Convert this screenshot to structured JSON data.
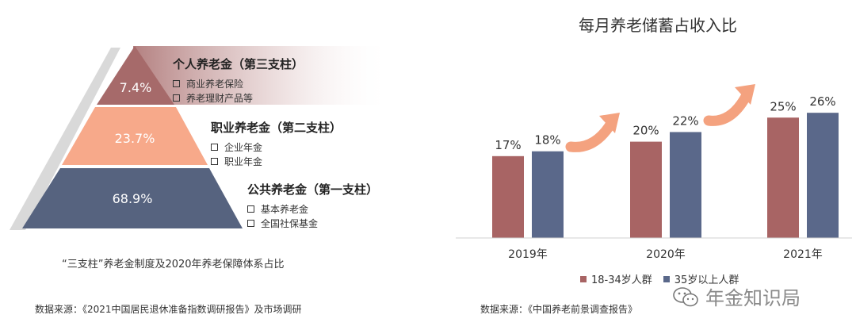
{
  "left_panel": {
    "tiers": [
      {
        "title": "个人养老金（第三支柱）",
        "percent": "7.4%",
        "items": [
          "商业养老保险",
          "养老理财产品等"
        ],
        "color": "#a66a6a"
      },
      {
        "title": "职业养老金（第二支柱）",
        "percent": "23.7%",
        "items": [
          "企业年金",
          "职业年金"
        ],
        "color": "#f7a98a"
      },
      {
        "title": "公共养老金（第一支柱）",
        "percent": "68.9%",
        "items": [
          "基本养老金",
          "全国社保基金"
        ],
        "color": "#56637f"
      }
    ],
    "caption": "“三支柱”养老金制度及2020年养老保障体系占比",
    "source": "数据来源：《2021中国居民退休准备指数调研报告》及市场调研"
  },
  "chart_data": {
    "type": "bar",
    "title": "每月养老储蓄占收入比",
    "categories": [
      "2019年",
      "2020年",
      "2021年"
    ],
    "series": [
      {
        "name": "18-34岁人群",
        "values": [
          17,
          20,
          25
        ],
        "labels": [
          "17%",
          "20%",
          "25%"
        ],
        "color": "#a86464"
      },
      {
        "name": "35岁以上人群",
        "values": [
          18,
          22,
          26
        ],
        "labels": [
          "18%",
          "22%",
          "26%"
        ],
        "color": "#5a688a"
      }
    ],
    "legend_position": "bottom",
    "grid": false
  },
  "right_panel": {
    "source": "数据来源：《中国养老前景调查报告》",
    "arrow_color": "#f4a27f"
  },
  "watermark": {
    "text": "年金知识局",
    "icon": "wechat-icon"
  }
}
